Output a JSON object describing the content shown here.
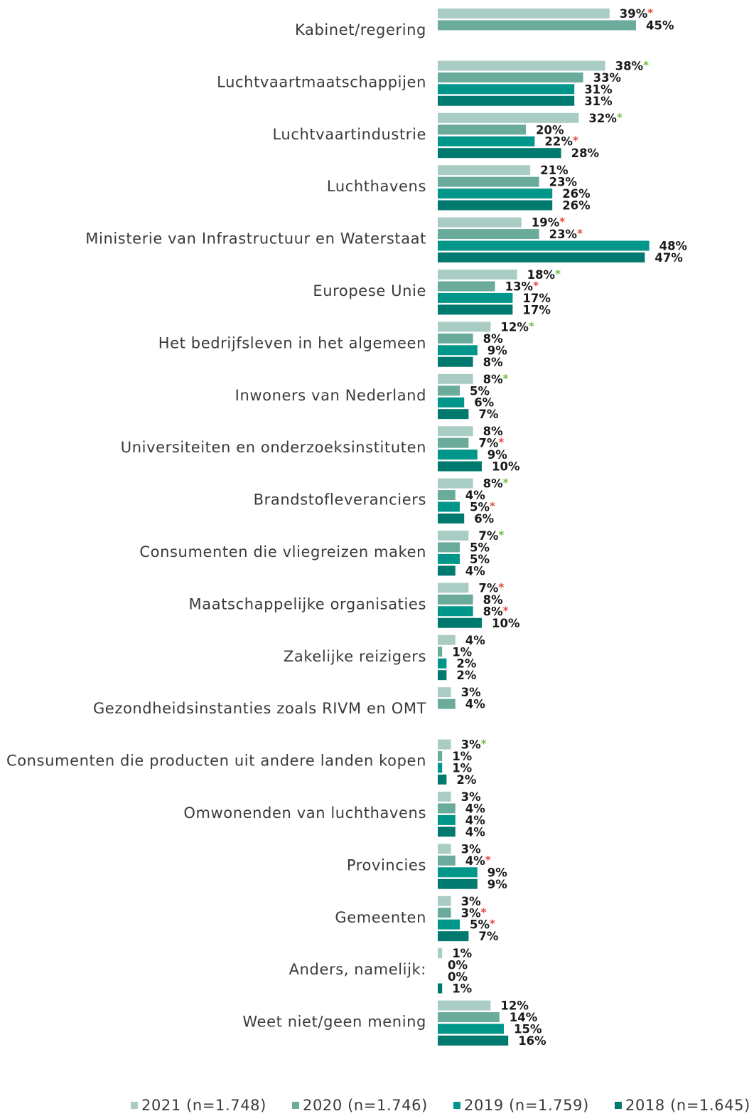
{
  "chart_data": {
    "type": "bar",
    "orientation": "horizontal",
    "categories": [
      "Kabinet/regering",
      "Luchtvaartmaatschappijen",
      "Luchtvaartindustrie",
      "Luchthavens",
      "Ministerie van Infrastructuur en Waterstaat",
      "Europese Unie",
      "Het bedrijfsleven in het algemeen",
      "Inwoners van Nederland",
      "Universiteiten en onderzoeksinstituten",
      "Brandstofleveranciers",
      "Consumenten die vliegreizen maken",
      "Maatschappelijke organisaties",
      "Zakelijke reizigers",
      "Gezondheidsinstanties zoals RIVM en OMT",
      "Consumenten die producten uit andere landen kopen",
      "Omwonenden van luchthavens",
      "Provincies",
      "Gemeenten",
      "Anders, namelijk:",
      "Weet niet/geen mening"
    ],
    "asterisk": "*",
    "series": [
      {
        "name": "2021 (n=1.748)",
        "color": "#a9cdc4",
        "values": [
          39,
          38,
          32,
          21,
          19,
          18,
          12,
          8,
          8,
          8,
          7,
          7,
          4,
          3,
          3,
          3,
          3,
          3,
          1,
          12
        ],
        "value_labels": [
          "39%",
          "38%",
          "32%",
          "21%",
          "19%",
          "18%",
          "12%",
          "8%",
          "8%",
          "8%",
          "7%",
          "7%",
          "4%",
          "3%",
          "3%",
          "3%",
          "3%",
          "3%",
          "1%",
          "12%"
        ],
        "asterisk_color": [
          "#e8473b",
          "#6cbf3f",
          "#6cbf3f",
          null,
          "#e8473b",
          "#6cbf3f",
          "#6cbf3f",
          "#6cbf3f",
          null,
          "#6cbf3f",
          "#6cbf3f",
          "#e8473b",
          null,
          null,
          "#6cbf3f",
          null,
          null,
          null,
          null,
          null
        ]
      },
      {
        "name": "2020 (n=1.746)",
        "color": "#6aab9c",
        "values": [
          45,
          33,
          20,
          23,
          23,
          13,
          8,
          5,
          7,
          4,
          5,
          8,
          1,
          4,
          1,
          4,
          4,
          3,
          0,
          14
        ],
        "value_labels": [
          "45%",
          "33%",
          "20%",
          "23%",
          "23%",
          "13%",
          "8%",
          "5%",
          "7%",
          "4%",
          "5%",
          "8%",
          "1%",
          "4%",
          "1%",
          "4%",
          "4%",
          "3%",
          "0%",
          "14%"
        ],
        "asterisk_color": [
          null,
          null,
          null,
          null,
          "#e8473b",
          "#e8473b",
          null,
          null,
          "#e8473b",
          null,
          null,
          null,
          null,
          null,
          null,
          null,
          "#e8473b",
          "#e8473b",
          null,
          null
        ]
      },
      {
        "name": "2019 (n=1.759)",
        "color": "#00968a",
        "values": [
          null,
          31,
          22,
          26,
          48,
          17,
          9,
          6,
          9,
          5,
          5,
          8,
          2,
          null,
          1,
          4,
          9,
          5,
          0,
          15
        ],
        "value_labels": [
          null,
          "31%",
          "22%",
          "26%",
          "48%",
          "17%",
          "9%",
          "6%",
          "9%",
          "5%",
          "5%",
          "8%",
          "2%",
          null,
          "1%",
          "4%",
          "9%",
          "5%",
          "0%",
          "15%"
        ],
        "asterisk_color": [
          null,
          null,
          "#e8473b",
          null,
          null,
          null,
          null,
          null,
          null,
          "#e8473b",
          null,
          "#e8473b",
          null,
          null,
          null,
          null,
          null,
          "#e8473b",
          null,
          null
        ]
      },
      {
        "name": "2018 (n=1.645)",
        "color": "#007a6e",
        "values": [
          null,
          31,
          28,
          26,
          47,
          17,
          8,
          7,
          10,
          6,
          4,
          10,
          2,
          null,
          2,
          4,
          9,
          7,
          1,
          16
        ],
        "value_labels": [
          null,
          "31%",
          "28%",
          "26%",
          "47%",
          "17%",
          "8%",
          "7%",
          "10%",
          "6%",
          "4%",
          "10%",
          "2%",
          null,
          "2%",
          "4%",
          "9%",
          "7%",
          "1%",
          "16%"
        ],
        "asterisk_color": [
          null,
          null,
          null,
          null,
          null,
          null,
          null,
          null,
          null,
          null,
          null,
          null,
          null,
          null,
          null,
          null,
          null,
          null,
          null,
          null
        ]
      }
    ]
  }
}
